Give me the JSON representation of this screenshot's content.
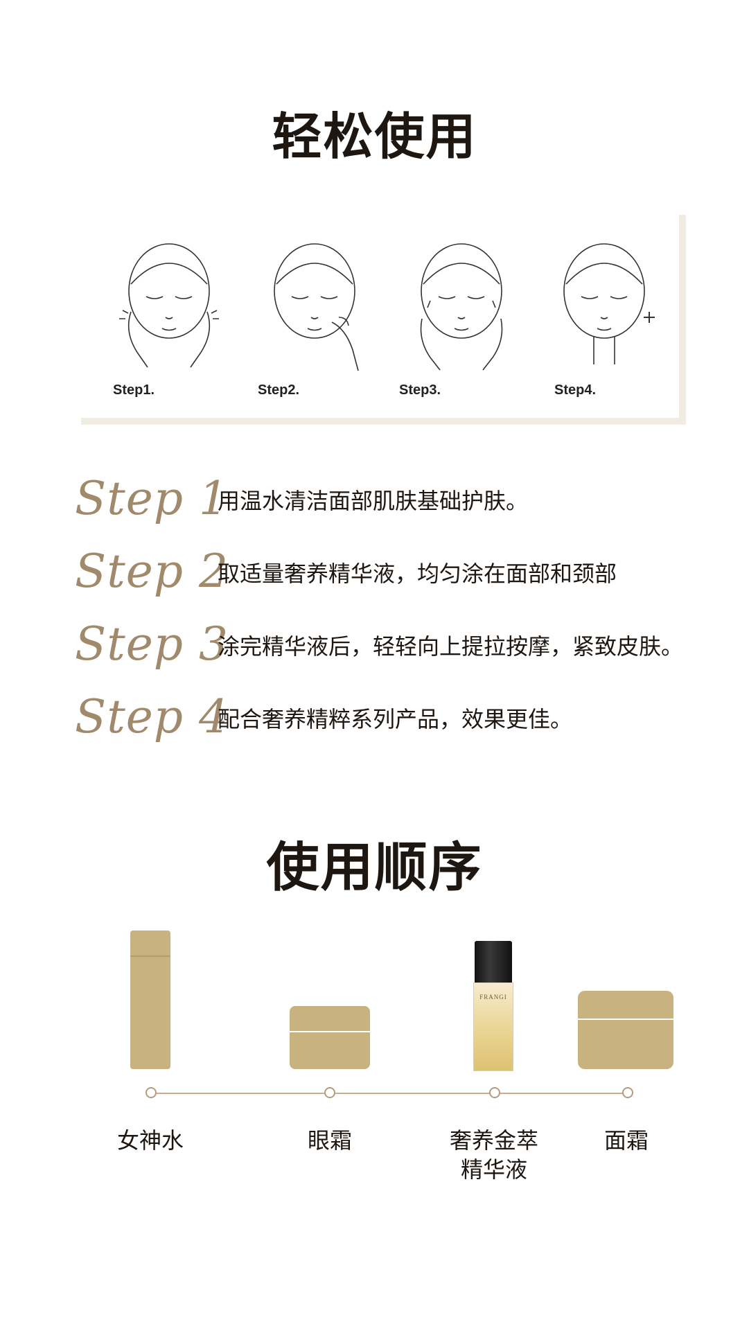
{
  "headings": {
    "easy_use": "轻松使用",
    "usage_order": "使用顺序"
  },
  "illustration": {
    "captions": [
      "Step1.",
      "Step2.",
      "Step3.",
      "Step4."
    ]
  },
  "steps": [
    {
      "label": "Step 1",
      "text": "用温水清洁面部肌肤基础护肤。"
    },
    {
      "label": "Step 2",
      "text": "取适量奢养精华液，均匀涂在面部和颈部"
    },
    {
      "label": "Step 3",
      "text": "涂完精华液后，轻轻向上提拉按摩，紧致皮肤。"
    },
    {
      "label": "Step 4",
      "text": "配合奢养精粹系列产品，效果更佳。"
    }
  ],
  "products": [
    {
      "name": "女神水",
      "icon": "tall-bottle-icon"
    },
    {
      "name": "眼霜",
      "icon": "small-jar-icon"
    },
    {
      "name": "奢养金萃\n精华液",
      "icon": "serum-bottle-icon",
      "brand": "FRANGI"
    },
    {
      "name": "面霜",
      "icon": "large-jar-icon"
    }
  ],
  "colors": {
    "accent_gold": "#c8b27f",
    "script_brown": "#a18a6b",
    "timeline": "#c7b08f",
    "panel_border": "#f1ece2"
  }
}
